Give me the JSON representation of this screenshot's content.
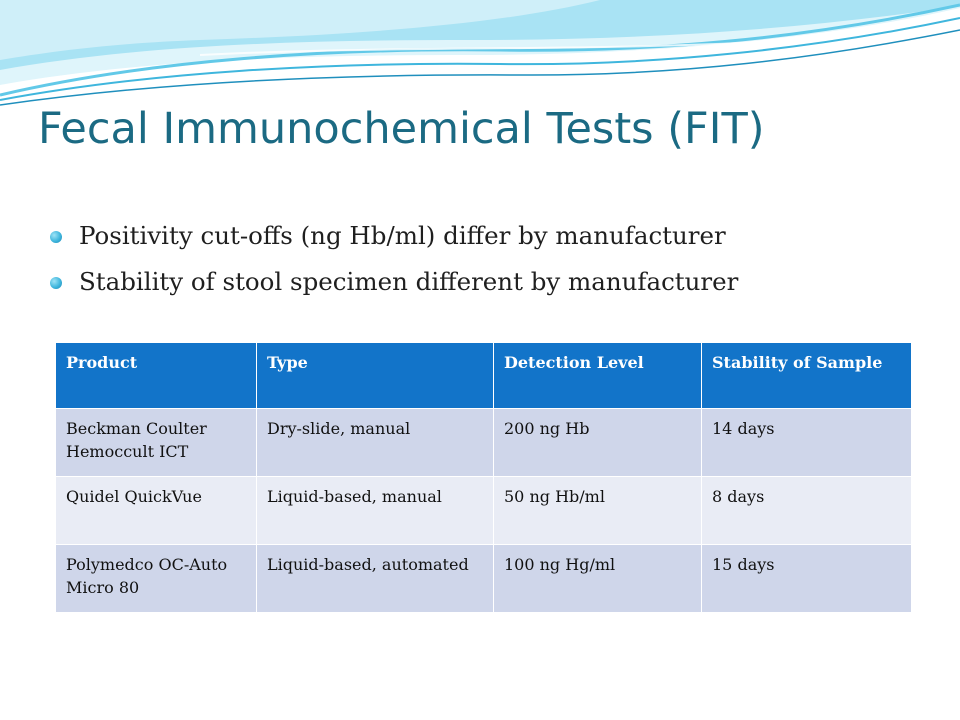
{
  "slide": {
    "title": "Fecal Immunochemical Tests (FIT)",
    "bullets": [
      "Positivity cut-offs (ng Hb/ml) differ by manufacturer",
      "Stability of stool specimen different by manufacturer"
    ]
  },
  "table": {
    "headers": [
      "Product",
      "Type",
      "Detection Level",
      "Stability of Sample"
    ],
    "rows": [
      [
        "Beckman Coulter Hemoccult ICT",
        "Dry-slide, manual",
        "200 ng Hb",
        "14 days"
      ],
      [
        "Quidel QuickVue",
        "Liquid-based, manual",
        "50 ng Hb/ml",
        "8 days"
      ],
      [
        "Polymedco OC-Auto Micro 80",
        "Liquid-based, automated",
        "100 ng Hg/ml",
        "15 days"
      ]
    ]
  },
  "colors": {
    "title": "#1b6a83",
    "header_fill": "#1274c9",
    "row_fill_dark": "#cfd6ea",
    "row_fill_light": "#e9ecf5",
    "wave_light": "#c8eef8",
    "wave_mid": "#62c9e8",
    "wave_dark": "#1f8fbd"
  }
}
